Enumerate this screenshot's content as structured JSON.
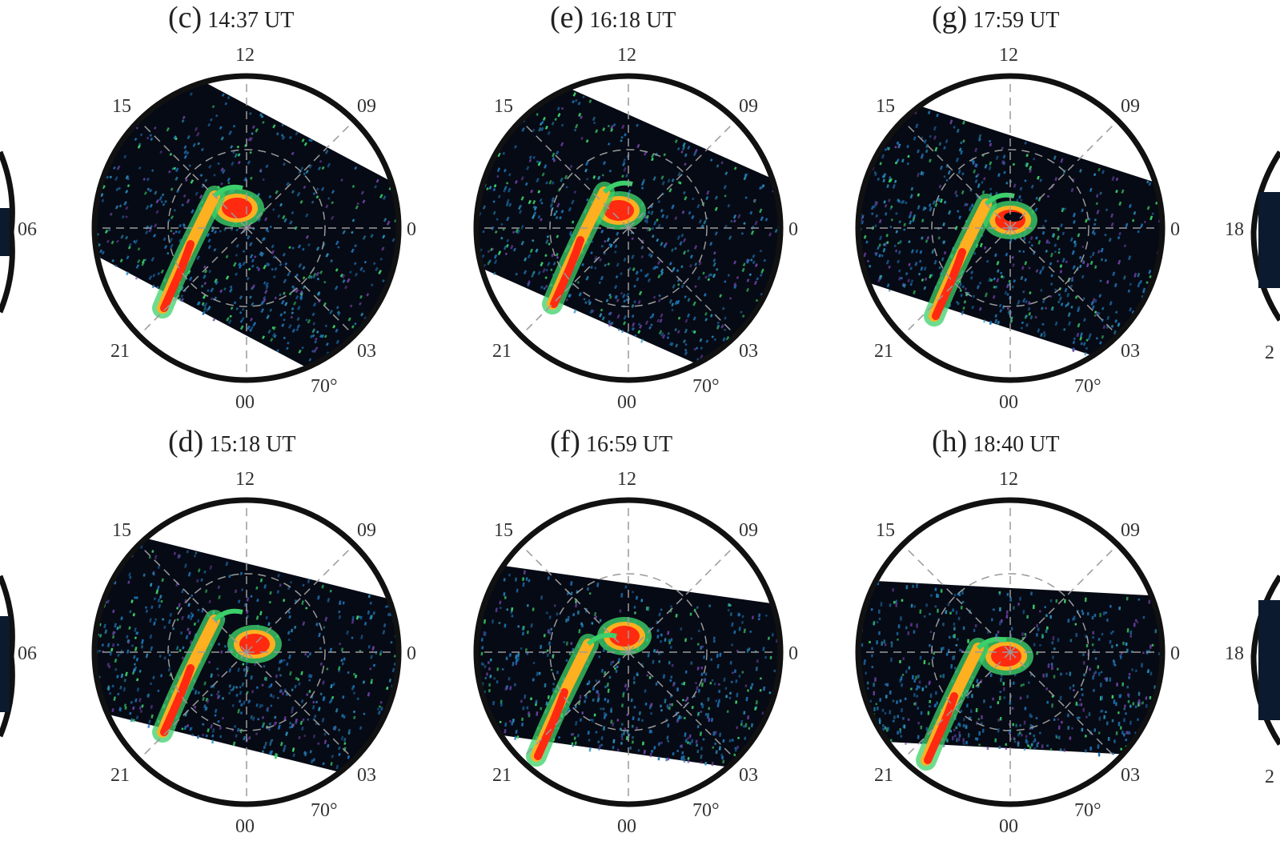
{
  "panels": [
    {
      "id": "c",
      "letter": "(c)",
      "time": "14:37 UT",
      "swath": {
        "angle": 28,
        "offset": -10,
        "width": 255
      },
      "blobs": [
        [
          -12,
          -25,
          "oval"
        ],
        [
          -95,
          70,
          "streak"
        ]
      ]
    },
    {
      "id": "e",
      "letter": "(e)",
      "time": "16:18 UT",
      "swath": {
        "angle": 24,
        "offset": -5,
        "width": 250
      },
      "blobs": [
        [
          -12,
          -22,
          "oval"
        ],
        [
          -85,
          65,
          "streak"
        ]
      ]
    },
    {
      "id": "g",
      "letter": "(g)",
      "time": "17:59 UT",
      "swath": {
        "angle": 18,
        "offset": 5,
        "width": 230
      },
      "blobs": [
        [
          0,
          -10,
          "arc"
        ],
        [
          -85,
          80,
          "streak"
        ]
      ]
    },
    {
      "id": "d",
      "letter": "(d)",
      "time": "15:18 UT",
      "swath": {
        "angle": 14,
        "offset": 5,
        "width": 225
      },
      "blobs": [
        [
          10,
          -10,
          "oval"
        ],
        [
          -95,
          70,
          "streak"
        ]
      ]
    },
    {
      "id": "f",
      "letter": "(f)",
      "time": "16:59 UT",
      "swath": {
        "angle": 8,
        "offset": 20,
        "width": 210
      },
      "blobs": [
        [
          -5,
          -20,
          "oval"
        ],
        [
          -105,
          100,
          "streak"
        ]
      ]
    },
    {
      "id": "h",
      "letter": "(h)",
      "time": "18:40 UT",
      "swath": {
        "angle": 3,
        "offset": 20,
        "width": 200
      },
      "blobs": [
        [
          -5,
          5,
          "oval"
        ],
        [
          -95,
          105,
          "streak"
        ]
      ]
    }
  ],
  "mlt_labels": {
    "top": "12",
    "upper_left": "15",
    "upper_right": "09",
    "left": "18",
    "right": "06",
    "lower_left": "21",
    "lower_right": "03",
    "bottom": "00"
  },
  "latitude_label": "70°",
  "partial_labels": {
    "left_06": "06",
    "right_18": "18",
    "right_partial": "2"
  },
  "colors": {
    "ring": "#111111",
    "grid": "#9a9a9a",
    "swath_bg": "#060a14",
    "hot": "#ff2a10",
    "warm": "#ffb020",
    "mid": "#3cd06a",
    "cool": "#1c6fb0"
  }
}
